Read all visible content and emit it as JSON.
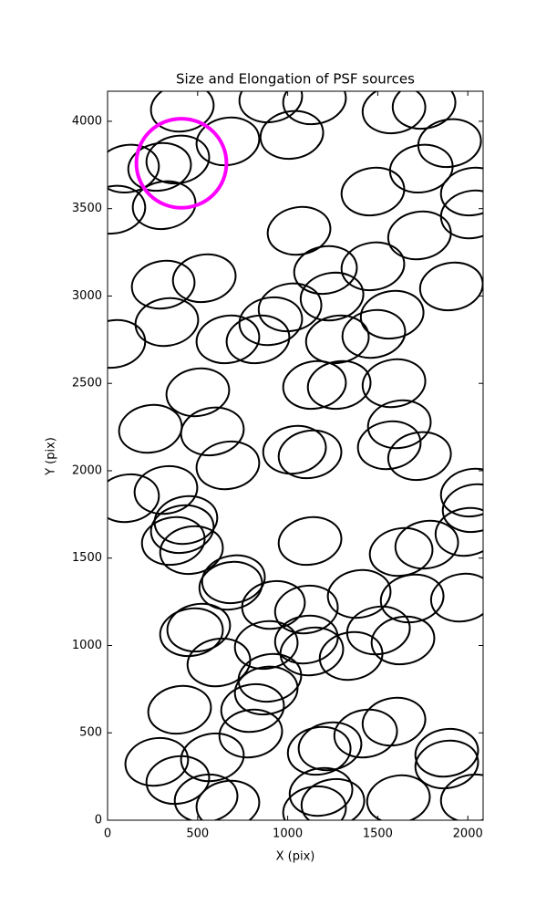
{
  "chart_data": {
    "type": "ellipse",
    "title": "Size and Elongation of PSF sources",
    "x_label": "X (pix)",
    "y_label": "Y (pix)",
    "xlim": [
      0,
      2085
    ],
    "ylim": [
      0,
      4172
    ],
    "xticks": [
      0,
      500,
      1000,
      1500,
      2000
    ],
    "yticks": [
      0,
      500,
      1000,
      1500,
      2000,
      2500,
      3000,
      3500,
      4000
    ],
    "color": "#000000",
    "ellipse_width": 350,
    "ellipse_height": 270,
    "ellipse_angle": -10,
    "x": [
      415,
      906,
      1149,
      668,
      1023,
      1590,
      1757,
      1899,
      111,
      289,
      390,
      314,
      35,
      1742,
      1732,
      1473,
      2025,
      2025,
      1063,
      1210,
      1473,
      1909,
      309,
      537,
      1246,
      1013,
      906,
      329,
      668,
      835,
      1276,
      1580,
      1478,
      35,
      501,
      1149,
      1286,
      1590,
      1620,
      238,
      582,
      668,
      1038,
      1124,
      1564,
      1732,
      324,
      111,
      2025,
      2035,
      435,
      415,
      365,
      466,
      1124,
      1630,
      1772,
      1995,
      699,
      684,
      921,
      1104,
      1397,
      1691,
      1970,
      466,
      506,
      618,
      881,
      1104,
      1134,
      1352,
      1504,
      1640,
      901,
      881,
      400,
      805,
      795,
      1433,
      1590,
      1883,
      1883,
      273,
      390,
      582,
      1175,
      1235,
      1185,
      1149,
      1251,
      1615,
      2025,
      547,
      668
    ],
    "y": [
      4078,
      4131,
      4120,
      3885,
      3922,
      4068,
      4094,
      3875,
      3729,
      3739,
      3781,
      3520,
      3494,
      3729,
      3347,
      3598,
      3598,
      3467,
      3373,
      3149,
      3170,
      3055,
      3065,
      3102,
      2997,
      2935,
      2856,
      2851,
      2752,
      2752,
      2752,
      2893,
      2783,
      2726,
      2449,
      2491,
      2491,
      2501,
      2266,
      2240,
      2225,
      2031,
      2120,
      2094,
      2146,
      2084,
      1890,
      1843,
      1875,
      1786,
      1718,
      1666,
      1598,
      1546,
      1598,
      1535,
      1577,
      1650,
      1379,
      1342,
      1232,
      1206,
      1295,
      1269,
      1274,
      1076,
      1102,
      903,
      1003,
      1034,
      966,
      940,
      1086,
      1029,
      815,
      742,
      632,
      642,
      496,
      496,
      564,
      386,
      319,
      334,
      230,
      360,
      397,
      423,
      162,
      57,
      99,
      120,
      125,
      125,
      89
    ],
    "highlight": {
      "x": 410,
      "y": 3760,
      "width": 500,
      "height": 510,
      "color": "#ff00ff"
    }
  }
}
